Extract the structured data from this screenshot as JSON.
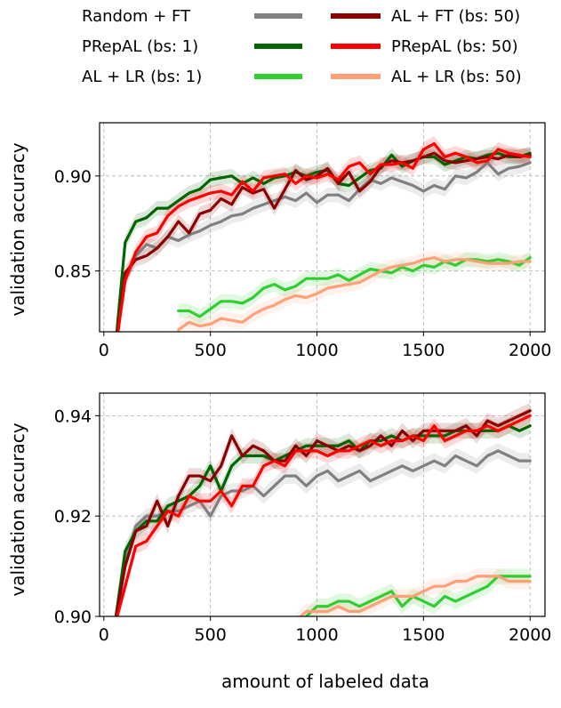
{
  "legend": {
    "entries": [
      {
        "label": "Random + FT",
        "color": "#808080"
      },
      {
        "label": "PRepAL (bs: 1)",
        "color": "#006400"
      },
      {
        "label": "AL + LR (bs: 1)",
        "color": "#32cd32"
      },
      {
        "label": "AL + FT (bs: 50)",
        "color": "#8b0000"
      },
      {
        "label": "PRepAL (bs: 50)",
        "color": "#ff0000"
      },
      {
        "label": "AL + LR (bs: 50)",
        "color": "#ffa07a"
      }
    ]
  },
  "xlabel": "amount of labeled data",
  "chart_data": [
    {
      "type": "line",
      "ylabel": "validation accuracy",
      "xlim": [
        -20,
        2070
      ],
      "ylim": [
        0.818,
        0.928
      ],
      "xticks": [
        0,
        500,
        1000,
        1500,
        2000
      ],
      "xtick_labels": [
        "0",
        "500",
        "1000",
        "1500",
        "2000"
      ],
      "yticks": [
        0.85,
        0.9
      ],
      "ytick_labels": [
        "0.85",
        "0.90"
      ],
      "grid": true,
      "series": [
        {
          "name": "Random + FT",
          "color": "#808080",
          "x": [
            50,
            100,
            150,
            200,
            250,
            300,
            350,
            400,
            450,
            500,
            550,
            600,
            650,
            700,
            750,
            800,
            850,
            900,
            950,
            1000,
            1050,
            1100,
            1150,
            1200,
            1250,
            1300,
            1350,
            1400,
            1450,
            1500,
            1550,
            1600,
            1650,
            1700,
            1750,
            1800,
            1850,
            1900,
            1950,
            2000
          ],
          "y": [
            0.805,
            0.845,
            0.858,
            0.864,
            0.862,
            0.868,
            0.866,
            0.869,
            0.871,
            0.874,
            0.876,
            0.879,
            0.88,
            0.883,
            0.885,
            0.887,
            0.889,
            0.887,
            0.891,
            0.886,
            0.89,
            0.89,
            0.887,
            0.893,
            0.898,
            0.896,
            0.899,
            0.897,
            0.895,
            0.892,
            0.895,
            0.893,
            0.9,
            0.899,
            0.902,
            0.907,
            0.901,
            0.904,
            0.905,
            0.907
          ]
        },
        {
          "name": "PRepAL (bs: 1)",
          "color": "#006400",
          "x": [
            50,
            100,
            150,
            200,
            250,
            300,
            350,
            400,
            450,
            500,
            550,
            600,
            650,
            700,
            750,
            800,
            850,
            900,
            950,
            1000,
            1050,
            1100,
            1150,
            1200,
            1250,
            1300,
            1350,
            1400,
            1450,
            1500,
            1550,
            1600,
            1650,
            1700,
            1750,
            1800,
            1850,
            1900,
            1950,
            2000
          ],
          "y": [
            0.805,
            0.865,
            0.876,
            0.878,
            0.883,
            0.883,
            0.887,
            0.891,
            0.893,
            0.898,
            0.899,
            0.9,
            0.896,
            0.899,
            0.896,
            0.899,
            0.9,
            0.902,
            0.9,
            0.902,
            0.903,
            0.896,
            0.895,
            0.899,
            0.903,
            0.904,
            0.911,
            0.905,
            0.908,
            0.91,
            0.91,
            0.906,
            0.908,
            0.91,
            0.909,
            0.911,
            0.912,
            0.91,
            0.91,
            0.912
          ]
        },
        {
          "name": "AL + LR (bs: 1)",
          "color": "#32cd32",
          "x": [
            350,
            400,
            450,
            500,
            550,
            600,
            650,
            700,
            750,
            800,
            850,
            900,
            950,
            1000,
            1050,
            1100,
            1150,
            1200,
            1250,
            1300,
            1350,
            1400,
            1450,
            1500,
            1550,
            1600,
            1650,
            1700,
            1750,
            1800,
            1850,
            1900,
            1950,
            2000
          ],
          "y": [
            0.829,
            0.829,
            0.826,
            0.83,
            0.834,
            0.834,
            0.833,
            0.836,
            0.841,
            0.843,
            0.84,
            0.842,
            0.846,
            0.846,
            0.846,
            0.848,
            0.845,
            0.848,
            0.851,
            0.85,
            0.849,
            0.852,
            0.85,
            0.853,
            0.852,
            0.855,
            0.853,
            0.856,
            0.856,
            0.855,
            0.856,
            0.855,
            0.853,
            0.857
          ]
        },
        {
          "name": "AL + FT (bs: 50)",
          "color": "#8b0000",
          "x": [
            50,
            100,
            150,
            200,
            250,
            300,
            350,
            400,
            450,
            500,
            550,
            600,
            650,
            700,
            750,
            800,
            850,
            900,
            950,
            1000,
            1050,
            1100,
            1150,
            1200,
            1250,
            1300,
            1350,
            1400,
            1450,
            1500,
            1550,
            1600,
            1650,
            1700,
            1750,
            1800,
            1850,
            1900,
            1950,
            2000
          ],
          "y": [
            0.805,
            0.849,
            0.856,
            0.858,
            0.862,
            0.868,
            0.876,
            0.87,
            0.88,
            0.882,
            0.888,
            0.885,
            0.894,
            0.891,
            0.893,
            0.883,
            0.893,
            0.903,
            0.898,
            0.9,
            0.904,
            0.896,
            0.902,
            0.892,
            0.897,
            0.905,
            0.908,
            0.907,
            0.908,
            0.91,
            0.912,
            0.908,
            0.907,
            0.908,
            0.909,
            0.91,
            0.909,
            0.911,
            0.91,
            0.911
          ]
        },
        {
          "name": "PRepAL (bs: 50)",
          "color": "#ff0000",
          "x": [
            50,
            100,
            150,
            200,
            250,
            300,
            350,
            400,
            450,
            500,
            550,
            600,
            650,
            700,
            750,
            800,
            850,
            900,
            950,
            1000,
            1050,
            1100,
            1150,
            1200,
            1250,
            1300,
            1350,
            1400,
            1450,
            1500,
            1550,
            1600,
            1650,
            1700,
            1750,
            1800,
            1850,
            1900,
            1950,
            2000
          ],
          "y": [
            0.805,
            0.845,
            0.86,
            0.868,
            0.87,
            0.879,
            0.884,
            0.887,
            0.889,
            0.891,
            0.892,
            0.89,
            0.897,
            0.892,
            0.899,
            0.9,
            0.901,
            0.896,
            0.9,
            0.899,
            0.901,
            0.898,
            0.905,
            0.907,
            0.901,
            0.906,
            0.906,
            0.907,
            0.904,
            0.914,
            0.917,
            0.91,
            0.912,
            0.91,
            0.907,
            0.908,
            0.914,
            0.912,
            0.911,
            0.91
          ]
        },
        {
          "name": "AL + LR (bs: 50)",
          "color": "#ffa07a",
          "x": [
            350,
            400,
            450,
            500,
            550,
            600,
            650,
            700,
            750,
            800,
            850,
            900,
            950,
            1000,
            1050,
            1100,
            1150,
            1200,
            1250,
            1300,
            1350,
            1400,
            1450,
            1500,
            1550,
            1600,
            1650,
            1700,
            1750,
            1800,
            1850,
            1900,
            1950,
            2000
          ],
          "y": [
            0.819,
            0.823,
            0.821,
            0.822,
            0.825,
            0.824,
            0.823,
            0.827,
            0.83,
            0.832,
            0.835,
            0.837,
            0.836,
            0.838,
            0.841,
            0.842,
            0.843,
            0.844,
            0.847,
            0.85,
            0.852,
            0.853,
            0.854,
            0.856,
            0.857,
            0.855,
            0.856,
            0.856,
            0.855,
            0.854,
            0.854,
            0.854,
            0.855,
            0.855
          ]
        }
      ]
    },
    {
      "type": "line",
      "ylabel": "validation accuracy",
      "xlim": [
        -20,
        2070
      ],
      "ylim": [
        0.9,
        0.9445
      ],
      "xticks": [
        0,
        500,
        1000,
        1500,
        2000
      ],
      "xtick_labels": [
        "0",
        "500",
        "1000",
        "1500",
        "2000"
      ],
      "yticks": [
        0.9,
        0.92,
        0.94
      ],
      "ytick_labels": [
        "0.90",
        "0.92",
        "0.94"
      ],
      "grid": true,
      "series": [
        {
          "name": "Random + FT",
          "color": "#808080",
          "x": [
            50,
            100,
            150,
            200,
            250,
            300,
            350,
            400,
            450,
            500,
            550,
            600,
            650,
            700,
            750,
            800,
            850,
            900,
            950,
            1000,
            1050,
            1100,
            1150,
            1200,
            1250,
            1300,
            1350,
            1400,
            1450,
            1500,
            1550,
            1600,
            1650,
            1700,
            1750,
            1800,
            1850,
            1900,
            1950,
            2000
          ],
          "y": [
            0.898,
            0.911,
            0.918,
            0.92,
            0.92,
            0.921,
            0.921,
            0.922,
            0.923,
            0.92,
            0.924,
            0.925,
            0.925,
            0.926,
            0.924,
            0.926,
            0.928,
            0.928,
            0.926,
            0.928,
            0.929,
            0.927,
            0.928,
            0.929,
            0.927,
            0.928,
            0.929,
            0.93,
            0.929,
            0.93,
            0.931,
            0.93,
            0.932,
            0.931,
            0.93,
            0.932,
            0.933,
            0.932,
            0.931,
            0.931
          ]
        },
        {
          "name": "PRepAL (bs: 1)",
          "color": "#006400",
          "x": [
            50,
            100,
            150,
            200,
            250,
            300,
            350,
            400,
            450,
            500,
            550,
            600,
            650,
            700,
            750,
            800,
            850,
            900,
            950,
            1000,
            1050,
            1100,
            1150,
            1200,
            1250,
            1300,
            1350,
            1400,
            1450,
            1500,
            1550,
            1600,
            1650,
            1700,
            1750,
            1800,
            1850,
            1900,
            1950,
            2000
          ],
          "y": [
            0.898,
            0.913,
            0.917,
            0.919,
            0.919,
            0.922,
            0.923,
            0.924,
            0.926,
            0.93,
            0.925,
            0.93,
            0.932,
            0.932,
            0.932,
            0.931,
            0.932,
            0.933,
            0.934,
            0.934,
            0.934,
            0.934,
            0.935,
            0.933,
            0.935,
            0.935,
            0.936,
            0.935,
            0.936,
            0.936,
            0.936,
            0.936,
            0.937,
            0.937,
            0.937,
            0.937,
            0.937,
            0.938,
            0.937,
            0.938
          ]
        },
        {
          "name": "AL + LR (bs: 1)",
          "color": "#32cd32",
          "x": [
            950,
            1000,
            1050,
            1100,
            1150,
            1200,
            1250,
            1300,
            1350,
            1400,
            1450,
            1500,
            1550,
            1600,
            1650,
            1700,
            1750,
            1800,
            1850,
            1900,
            1950,
            2000
          ],
          "y": [
            0.9,
            0.902,
            0.902,
            0.903,
            0.903,
            0.902,
            0.903,
            0.904,
            0.905,
            0.902,
            0.904,
            0.903,
            0.902,
            0.904,
            0.903,
            0.904,
            0.905,
            0.906,
            0.908,
            0.908,
            0.908,
            0.908
          ]
        },
        {
          "name": "AL + FT (bs: 50)",
          "color": "#8b0000",
          "x": [
            50,
            100,
            150,
            200,
            250,
            300,
            350,
            400,
            450,
            500,
            550,
            600,
            650,
            700,
            750,
            800,
            850,
            900,
            950,
            1000,
            1050,
            1100,
            1150,
            1200,
            1250,
            1300,
            1350,
            1400,
            1450,
            1500,
            1550,
            1600,
            1650,
            1700,
            1750,
            1800,
            1850,
            1900,
            1950,
            2000
          ],
          "y": [
            0.898,
            0.91,
            0.917,
            0.918,
            0.923,
            0.918,
            0.924,
            0.928,
            0.928,
            0.927,
            0.93,
            0.936,
            0.932,
            0.934,
            0.933,
            0.931,
            0.931,
            0.934,
            0.932,
            0.935,
            0.934,
            0.933,
            0.934,
            0.933,
            0.934,
            0.936,
            0.934,
            0.937,
            0.935,
            0.937,
            0.937,
            0.937,
            0.937,
            0.938,
            0.936,
            0.939,
            0.938,
            0.939,
            0.94,
            0.941
          ]
        },
        {
          "name": "PRepAL (bs: 50)",
          "color": "#ff0000",
          "x": [
            50,
            100,
            150,
            200,
            250,
            300,
            350,
            400,
            450,
            500,
            550,
            600,
            650,
            700,
            750,
            800,
            850,
            900,
            950,
            1000,
            1050,
            1100,
            1150,
            1200,
            1250,
            1300,
            1350,
            1400,
            1450,
            1500,
            1550,
            1600,
            1650,
            1700,
            1750,
            1800,
            1850,
            1900,
            1950,
            2000
          ],
          "y": [
            0.898,
            0.906,
            0.914,
            0.915,
            0.918,
            0.921,
            0.92,
            0.924,
            0.923,
            0.923,
            0.925,
            0.922,
            0.926,
            0.926,
            0.93,
            0.931,
            0.93,
            0.933,
            0.933,
            0.933,
            0.932,
            0.933,
            0.933,
            0.934,
            0.935,
            0.934,
            0.935,
            0.935,
            0.936,
            0.935,
            0.938,
            0.935,
            0.936,
            0.937,
            0.937,
            0.938,
            0.937,
            0.938,
            0.939,
            0.94
          ]
        },
        {
          "name": "AL + LR (bs: 50)",
          "color": "#ffa07a",
          "x": [
            900,
            950,
            1000,
            1050,
            1100,
            1150,
            1200,
            1250,
            1300,
            1350,
            1400,
            1450,
            1500,
            1550,
            1600,
            1650,
            1700,
            1750,
            1800,
            1850,
            1900,
            1950,
            2000
          ],
          "y": [
            0.899,
            0.901,
            0.901,
            0.901,
            0.902,
            0.901,
            0.901,
            0.902,
            0.903,
            0.904,
            0.904,
            0.904,
            0.905,
            0.906,
            0.906,
            0.907,
            0.907,
            0.908,
            0.908,
            0.908,
            0.907,
            0.907,
            0.907
          ]
        }
      ]
    }
  ]
}
